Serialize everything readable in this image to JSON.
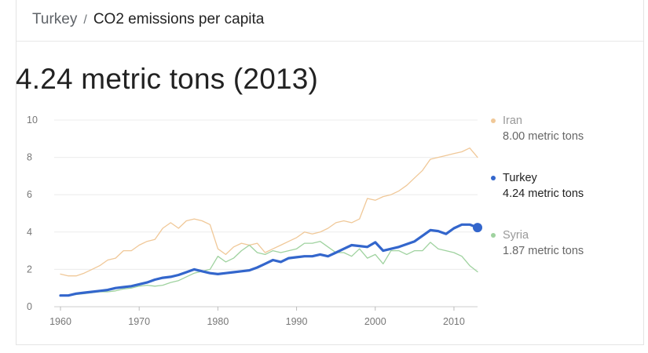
{
  "breadcrumb": {
    "country": "Turkey",
    "separator": "/",
    "metric": "CO2 emissions per capita"
  },
  "headline": "4.24 metric tons (2013)",
  "legend": [
    {
      "name": "Iran",
      "value": "8.00 metric tons",
      "color": "#f0c898",
      "text_color": "#999999"
    },
    {
      "name": "Turkey",
      "value": "4.24 metric tons",
      "color": "#3366cc",
      "text_color": "#222222"
    },
    {
      "name": "Syria",
      "value": "1.87 metric tons",
      "color": "#9fd29f",
      "text_color": "#999999"
    }
  ],
  "chart_data": {
    "type": "line",
    "x": [
      1960,
      1961,
      1962,
      1963,
      1964,
      1965,
      1966,
      1967,
      1968,
      1969,
      1970,
      1971,
      1972,
      1973,
      1974,
      1975,
      1976,
      1977,
      1978,
      1979,
      1980,
      1981,
      1982,
      1983,
      1984,
      1985,
      1986,
      1987,
      1988,
      1989,
      1990,
      1991,
      1992,
      1993,
      1994,
      1995,
      1996,
      1997,
      1998,
      1999,
      2000,
      2001,
      2002,
      2003,
      2004,
      2005,
      2006,
      2007,
      2008,
      2009,
      2010,
      2011,
      2012,
      2013
    ],
    "ylim": [
      0,
      10
    ],
    "yticks": [
      0,
      2,
      4,
      6,
      8,
      10
    ],
    "xticks": [
      1960,
      1970,
      1980,
      1990,
      2000,
      2010
    ],
    "grid": true,
    "legend_position": "right",
    "series": [
      {
        "name": "Iran",
        "color": "#f0c898",
        "width": 1.3,
        "values": [
          1.75,
          1.65,
          1.65,
          1.8,
          2.0,
          2.2,
          2.5,
          2.6,
          3.0,
          3.0,
          3.3,
          3.5,
          3.6,
          4.2,
          4.5,
          4.2,
          4.6,
          4.7,
          4.6,
          4.4,
          3.1,
          2.8,
          3.2,
          3.4,
          3.3,
          3.4,
          2.9,
          3.1,
          3.3,
          3.5,
          3.7,
          4.0,
          3.9,
          4.0,
          4.2,
          4.5,
          4.6,
          4.5,
          4.7,
          5.8,
          5.7,
          5.9,
          6.0,
          6.2,
          6.5,
          6.9,
          7.3,
          7.9,
          8.0,
          8.1,
          8.2,
          8.3,
          8.5,
          8.0
        ]
      },
      {
        "name": "Syria",
        "color": "#9fd29f",
        "width": 1.3,
        "values": [
          0.6,
          0.6,
          0.65,
          0.7,
          0.75,
          0.8,
          0.8,
          0.85,
          0.95,
          1.0,
          1.1,
          1.15,
          1.1,
          1.15,
          1.3,
          1.4,
          1.6,
          1.8,
          1.9,
          2.0,
          2.7,
          2.4,
          2.6,
          3.0,
          3.3,
          2.9,
          2.8,
          3.0,
          2.9,
          3.0,
          3.1,
          3.4,
          3.4,
          3.5,
          3.2,
          2.9,
          2.9,
          2.7,
          3.1,
          2.6,
          2.8,
          2.3,
          3.0,
          3.0,
          2.8,
          3.0,
          3.0,
          3.45,
          3.1,
          3.0,
          2.9,
          2.7,
          2.2,
          1.87
        ]
      },
      {
        "name": "Turkey",
        "color": "#3366cc",
        "width": 3.2,
        "values": [
          0.6,
          0.6,
          0.7,
          0.75,
          0.8,
          0.85,
          0.9,
          1.0,
          1.05,
          1.1,
          1.2,
          1.3,
          1.45,
          1.55,
          1.6,
          1.7,
          1.85,
          2.0,
          1.9,
          1.8,
          1.75,
          1.8,
          1.85,
          1.9,
          1.95,
          2.1,
          2.3,
          2.5,
          2.4,
          2.6,
          2.65,
          2.7,
          2.7,
          2.8,
          2.7,
          2.9,
          3.1,
          3.3,
          3.25,
          3.2,
          3.45,
          3.0,
          3.1,
          3.2,
          3.35,
          3.5,
          3.8,
          4.1,
          4.05,
          3.9,
          4.2,
          4.4,
          4.4,
          4.24
        ]
      }
    ]
  }
}
